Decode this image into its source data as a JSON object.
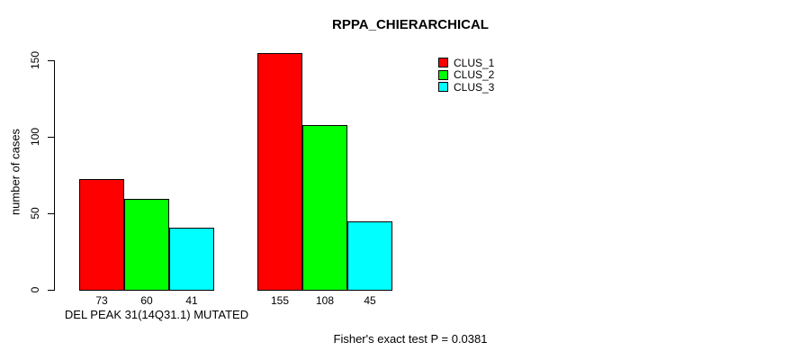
{
  "title": "RPPA_CHIERARCHICAL",
  "chart_data": {
    "type": "bar",
    "title": "RPPA_CHIERARCHICAL",
    "ylabel": "number of cases",
    "xlabel": "",
    "ylim": [
      0,
      150
    ],
    "yticks": [
      0,
      50,
      100,
      150
    ],
    "grid": false,
    "legend_position": "top-right",
    "categories": [
      "DEL PEAK 31(14Q31.1) MUTATED",
      ""
    ],
    "series": [
      {
        "name": "CLUS_1",
        "color": "#ff0000",
        "values": [
          73,
          155
        ]
      },
      {
        "name": "CLUS_2",
        "color": "#00ff00",
        "values": [
          60,
          108
        ]
      },
      {
        "name": "CLUS_3",
        "color": "#00ffff",
        "values": [
          41,
          45
        ]
      }
    ],
    "bar_value_labels": [
      [
        "73",
        "60",
        "41"
      ],
      [
        "155",
        "108",
        "45"
      ]
    ],
    "annotation": "Fisher's exact test P = 0.0381"
  }
}
